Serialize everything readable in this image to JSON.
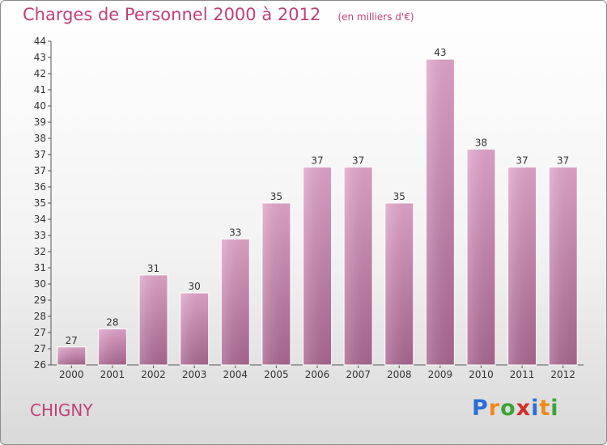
{
  "chart_data": {
    "type": "bar",
    "title": "Charges de Personnel 2000 à 2012",
    "subtitle": "(en milliers d'€)",
    "categories": [
      "2000",
      "2001",
      "2002",
      "2003",
      "2004",
      "2005",
      "2006",
      "2007",
      "2008",
      "2009",
      "2010",
      "2011",
      "2012"
    ],
    "values": [
      27,
      28,
      31,
      30,
      33,
      35,
      37,
      37,
      35,
      43,
      38,
      37,
      37
    ],
    "ylim": [
      26,
      44
    ],
    "y_ticks": [
      "26",
      "27",
      "27",
      "28",
      "29",
      "30",
      "31",
      "32",
      "33",
      "34",
      "35",
      "36",
      "37",
      "37",
      "38",
      "39",
      "40",
      "41",
      "42",
      "43",
      "44"
    ],
    "grid": false,
    "xlabel": "",
    "ylabel": "",
    "colors": {
      "bar_top": "#e2a6cc",
      "bar_bottom": "#aa6791",
      "title": "#c0407a"
    }
  },
  "commune": "CHIGNY",
  "brand": {
    "letters": [
      "P",
      "r",
      "o",
      "x",
      "i",
      "t",
      "i"
    ],
    "colors": [
      "#2b6fd6",
      "#f08a1a",
      "#3aa537",
      "#d62b2b",
      "#2b6fd6",
      "#f08a1a",
      "#3aa537"
    ]
  }
}
